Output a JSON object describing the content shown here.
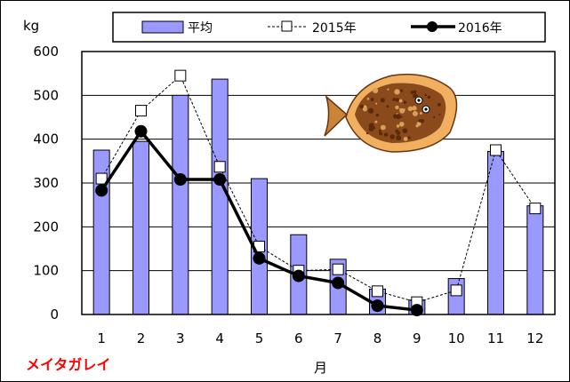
{
  "chart_data": {
    "type": "bar",
    "title": "",
    "species_label": "メイタガレイ",
    "ylabel": "kg",
    "xlabel": "月",
    "categories": [
      "1",
      "2",
      "3",
      "4",
      "5",
      "6",
      "7",
      "8",
      "9",
      "10",
      "11",
      "12"
    ],
    "ylim": [
      0,
      600
    ],
    "yticks": [
      0,
      100,
      200,
      300,
      400,
      500,
      600
    ],
    "grid": true,
    "legend_position": "top",
    "series": [
      {
        "name": "平均",
        "kind": "bar",
        "color": "#9999ff",
        "values": [
          375,
          395,
          500,
          537,
          310,
          182,
          126,
          58,
          33,
          82,
          372,
          248
        ]
      },
      {
        "name": "2015年",
        "kind": "line-dashed-square",
        "color": "#000000",
        "values": [
          310,
          465,
          545,
          337,
          155,
          100,
          103,
          53,
          28,
          55,
          375,
          242
        ]
      },
      {
        "name": "2016年",
        "kind": "line-solid-circle",
        "color": "#000000",
        "values": [
          283,
          418,
          308,
          308,
          128,
          88,
          72,
          20,
          10,
          null,
          null,
          null
        ]
      }
    ],
    "image": {
      "name": "flounder-fish-illustration",
      "color": "#8b4a1c"
    }
  }
}
